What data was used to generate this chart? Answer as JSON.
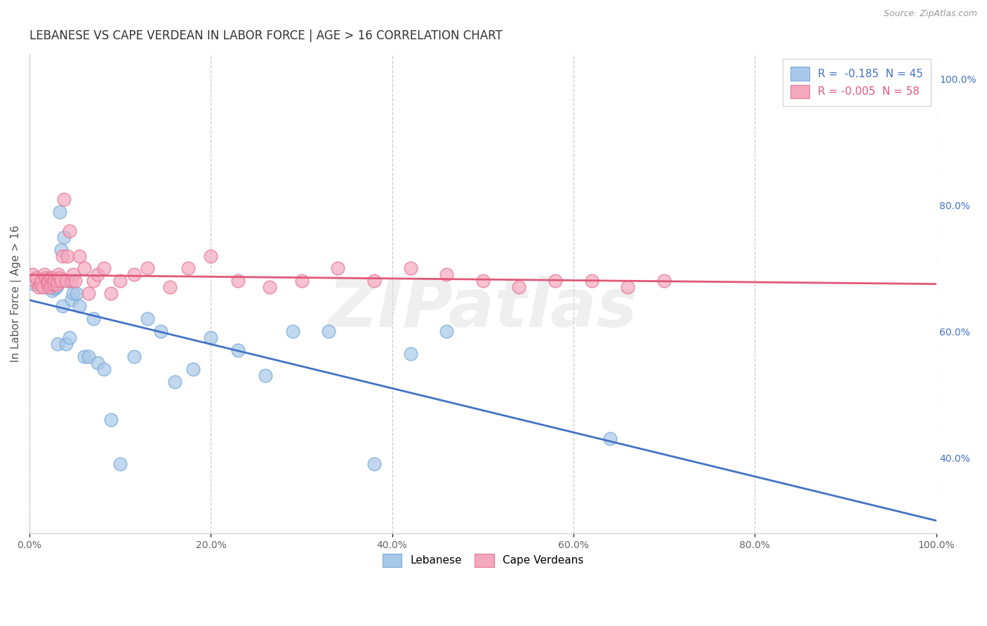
{
  "title": "LEBANESE VS CAPE VERDEAN IN LABOR FORCE | AGE > 16 CORRELATION CHART",
  "source_text": "Source: ZipAtlas.com",
  "ylabel": "In Labor Force | Age > 16",
  "xlim": [
    0.0,
    1.0
  ],
  "ylim": [
    0.28,
    1.04
  ],
  "x_ticks": [
    0.0,
    0.2,
    0.4,
    0.6,
    0.8,
    1.0
  ],
  "x_tick_labels": [
    "0.0%",
    "20.0%",
    "40.0%",
    "60.0%",
    "80.0%",
    "100.0%"
  ],
  "y_ticks": [
    0.4,
    0.6,
    0.8,
    1.0
  ],
  "y_tick_labels": [
    "40.0%",
    "60.0%",
    "80.0%",
    "100.0%"
  ],
  "watermark": "ZIPatlas",
  "legend_r1": "R =  -0.185  N = 45",
  "legend_r2": "R = -0.005  N = 58",
  "legend_label1": "Lebanese",
  "legend_label2": "Cape Verdeans",
  "blue_color": "#a8c8e8",
  "pink_color": "#f4a8be",
  "blue_edge_color": "#7aabda",
  "pink_edge_color": "#e87898",
  "blue_line_color": "#4472c4",
  "pink_line_color": "#e05878",
  "scatter_alpha": 0.7,
  "scatter_size": 180,
  "blue_x": [
    0.005,
    0.01,
    0.013,
    0.016,
    0.018,
    0.02,
    0.022,
    0.024,
    0.025,
    0.027,
    0.028,
    0.03,
    0.031,
    0.033,
    0.035,
    0.036,
    0.038,
    0.04,
    0.042,
    0.044,
    0.046,
    0.048,
    0.052,
    0.055,
    0.06,
    0.065,
    0.07,
    0.075,
    0.082,
    0.09,
    0.1,
    0.115,
    0.13,
    0.145,
    0.16,
    0.18,
    0.2,
    0.23,
    0.26,
    0.29,
    0.33,
    0.38,
    0.42,
    0.46,
    0.64
  ],
  "blue_y": [
    0.675,
    0.675,
    0.68,
    0.675,
    0.67,
    0.675,
    0.68,
    0.67,
    0.665,
    0.67,
    0.668,
    0.672,
    0.58,
    0.79,
    0.73,
    0.64,
    0.75,
    0.58,
    0.68,
    0.59,
    0.65,
    0.66,
    0.66,
    0.64,
    0.56,
    0.56,
    0.62,
    0.55,
    0.54,
    0.46,
    0.39,
    0.56,
    0.62,
    0.6,
    0.52,
    0.54,
    0.59,
    0.57,
    0.53,
    0.6,
    0.6,
    0.39,
    0.565,
    0.6,
    0.43
  ],
  "pink_x": [
    0.003,
    0.005,
    0.008,
    0.01,
    0.012,
    0.013,
    0.015,
    0.016,
    0.018,
    0.019,
    0.02,
    0.021,
    0.022,
    0.023,
    0.024,
    0.025,
    0.026,
    0.027,
    0.028,
    0.03,
    0.031,
    0.032,
    0.033,
    0.035,
    0.036,
    0.038,
    0.04,
    0.042,
    0.044,
    0.046,
    0.048,
    0.05,
    0.055,
    0.06,
    0.065,
    0.07,
    0.075,
    0.082,
    0.09,
    0.1,
    0.115,
    0.13,
    0.155,
    0.175,
    0.2,
    0.23,
    0.265,
    0.3,
    0.34,
    0.38,
    0.42,
    0.46,
    0.5,
    0.54,
    0.58,
    0.62,
    0.66,
    0.7
  ],
  "pink_y": [
    0.69,
    0.68,
    0.685,
    0.67,
    0.675,
    0.68,
    0.67,
    0.69,
    0.685,
    0.68,
    0.675,
    0.68,
    0.67,
    0.685,
    0.675,
    0.685,
    0.68,
    0.675,
    0.68,
    0.675,
    0.68,
    0.69,
    0.685,
    0.68,
    0.72,
    0.81,
    0.68,
    0.72,
    0.76,
    0.68,
    0.69,
    0.68,
    0.72,
    0.7,
    0.66,
    0.68,
    0.69,
    0.7,
    0.66,
    0.68,
    0.69,
    0.7,
    0.67,
    0.7,
    0.72,
    0.68,
    0.67,
    0.68,
    0.7,
    0.68,
    0.7,
    0.69,
    0.68,
    0.67,
    0.68,
    0.68,
    0.67,
    0.68
  ],
  "background_color": "#ffffff",
  "grid_color": "#cccccc",
  "right_tick_color": "#4472c4",
  "title_fontsize": 12,
  "axis_label_fontsize": 11,
  "tick_fontsize": 10
}
